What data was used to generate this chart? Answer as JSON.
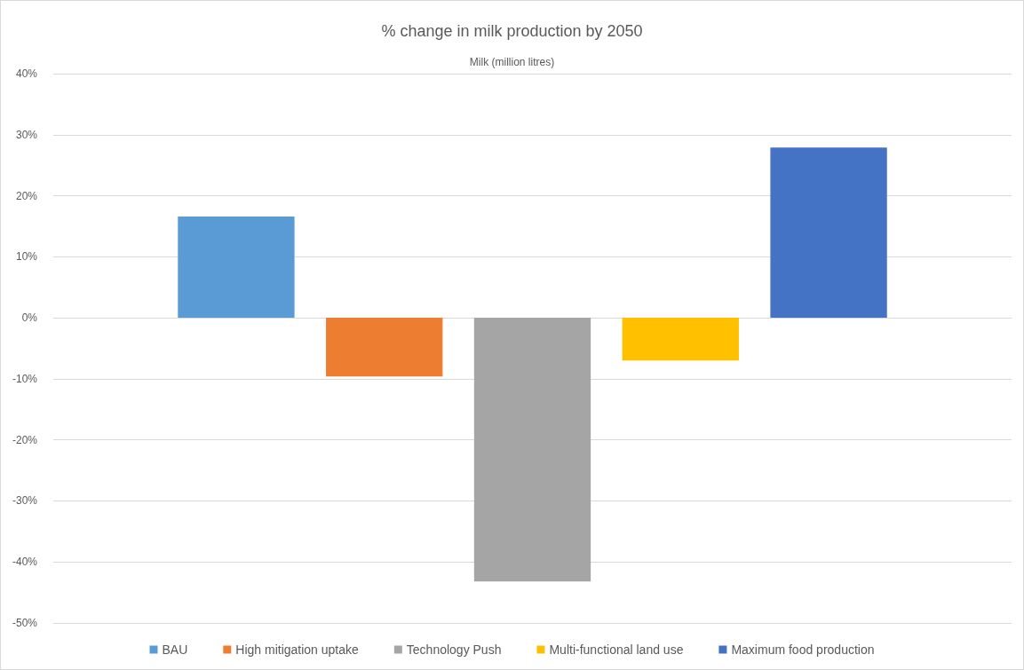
{
  "chart_data": {
    "type": "bar",
    "title": "% change in milk production by 2050",
    "subtitle": "Milk (million litres)",
    "categories": [
      null
    ],
    "series": [
      {
        "name": "BAU",
        "color": "#5b9bd5",
        "values": [
          16.6
        ]
      },
      {
        "name": "High mitigation uptake",
        "color": "#ed7d31",
        "values": [
          -9.6
        ]
      },
      {
        "name": "Technology Push",
        "color": "#a5a5a5",
        "values": [
          -43.2
        ]
      },
      {
        "name": "Multi-functional land use",
        "color": "#ffc000",
        "values": [
          -7.0
        ]
      },
      {
        "name": "Maximum food production",
        "color": "#4472c4",
        "values": [
          27.9
        ]
      }
    ],
    "ylim": [
      -50,
      40
    ],
    "yticks": [
      {
        "value": -50,
        "label": "-50%"
      },
      {
        "value": -40,
        "label": "-40%"
      },
      {
        "value": -30,
        "label": "-30%"
      },
      {
        "value": -20,
        "label": "-20%"
      },
      {
        "value": -10,
        "label": "-10%"
      },
      {
        "value": 0,
        "label": "0%"
      },
      {
        "value": 10,
        "label": "10%"
      },
      {
        "value": 20,
        "label": "20%"
      },
      {
        "value": 30,
        "label": "30%"
      },
      {
        "value": 40,
        "label": "40%"
      }
    ],
    "grid": "y",
    "legend": "bottom"
  }
}
